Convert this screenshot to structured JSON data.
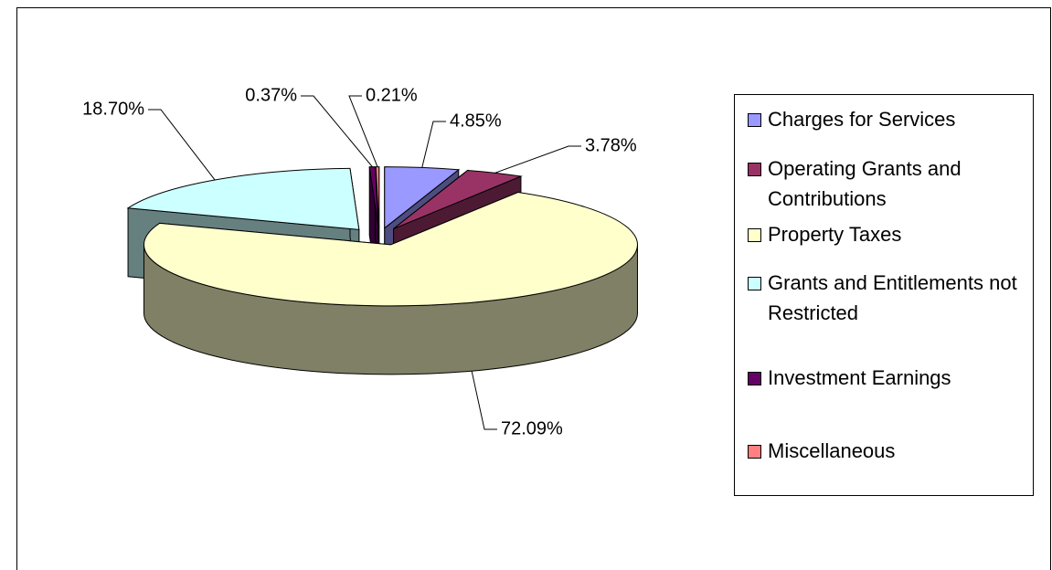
{
  "chart_data": {
    "type": "pie3d",
    "categories": [
      "Charges for Services",
      "Operating Grants and Contributions",
      "Property Taxes",
      "Grants and Entitlements not Restricted",
      "Investment Earnings",
      "Miscellaneous"
    ],
    "values": [
      4.85,
      3.78,
      72.09,
      18.7,
      0.37,
      0.21
    ],
    "value_labels": [
      "4.85%",
      "3.78%",
      "72.09%",
      "18.70%",
      "0.37%",
      "0.21%"
    ],
    "colors": [
      "#9999ff",
      "#993366",
      "#ffffcc",
      "#ccffff",
      "#660066",
      "#ff8080"
    ],
    "legend": "right"
  }
}
